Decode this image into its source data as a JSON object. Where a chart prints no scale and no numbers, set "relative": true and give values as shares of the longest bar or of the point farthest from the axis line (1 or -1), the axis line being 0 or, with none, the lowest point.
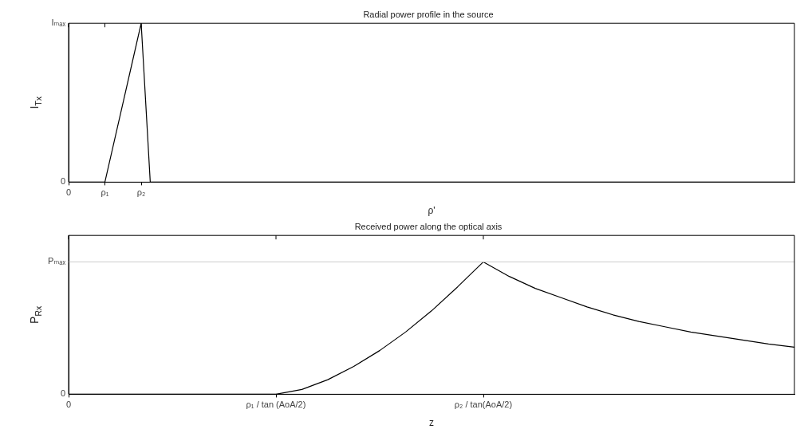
{
  "chart_data": [
    {
      "type": "line",
      "title": "Radial power profile in the source",
      "xlabel": "ρ'",
      "ylabel": "I$_{Tx}$",
      "marker": "none",
      "relative": true,
      "categories": [
        "0",
        null,
        null,
        null,
        "ρ₁",
        null,
        null,
        null,
        "ρ₂",
        null,
        null,
        null,
        null,
        null,
        null,
        null,
        null,
        null,
        null,
        null,
        null,
        null,
        null,
        null,
        null,
        null,
        null,
        null,
        null,
        null,
        null,
        null,
        null,
        null,
        null,
        null,
        null,
        null,
        null,
        null,
        null,
        null,
        null,
        null,
        null,
        null,
        null,
        null,
        null,
        null,
        null,
        null,
        null,
        null,
        null,
        null,
        null,
        null,
        null,
        null,
        null,
        null,
        null,
        null,
        null,
        null,
        null,
        null,
        null,
        null,
        null,
        null,
        null,
        null,
        null,
        null,
        null,
        null,
        null,
        null,
        null
      ],
      "annotations": [
        "0",
        "Iₘₐₓ"
      ],
      "series": [
        {
          "color": "#000000",
          "values": [
            0,
            0,
            0,
            0,
            0,
            0.25,
            0.5,
            0.75,
            1,
            0,
            0,
            0,
            0,
            0,
            0,
            0,
            0,
            0,
            0,
            0,
            0,
            0,
            0,
            0,
            0,
            0,
            0,
            0,
            0,
            0,
            0,
            0,
            0,
            0,
            0,
            0,
            0,
            0,
            0,
            0,
            0,
            0,
            0,
            0,
            0,
            0,
            0,
            0,
            0,
            0,
            0,
            0,
            0,
            0,
            0,
            0,
            0,
            0,
            0,
            0,
            0,
            0,
            0,
            0,
            0,
            0,
            0,
            0,
            0,
            0,
            0,
            0,
            0,
            0,
            0,
            0,
            0,
            0,
            0,
            0,
            0
          ]
        }
      ]
    },
    {
      "type": "line",
      "title": "Received power along the optical axis",
      "xlabel": "z",
      "ylabel": "P$_{Rx}$",
      "marker": "none",
      "relative": true,
      "categories": [
        "0",
        null,
        null,
        null,
        null,
        null,
        null,
        null,
        "ρ₁ / tan (AoA/2)",
        null,
        null,
        null,
        null,
        null,
        null,
        null,
        "ρ₂ / tan(AoA/2)",
        null,
        null,
        null,
        null,
        null,
        null,
        null,
        null,
        null,
        null,
        null,
        null
      ],
      "annotations": [
        "0",
        "Pₘₐₓ"
      ],
      "ref_lines": [
        {
          "axis": "y",
          "value": 1,
          "color": "#cccccc"
        }
      ],
      "series": [
        {
          "color": "#000000",
          "values": [
            0,
            0,
            0,
            0,
            0,
            0,
            0,
            0,
            0,
            0.036,
            0.11,
            0.21,
            0.33,
            0.47,
            0.63,
            0.81,
            1,
            0.89,
            0.8,
            0.73,
            0.66,
            0.6,
            0.55,
            0.51,
            0.47,
            0.44,
            0.41,
            0.38,
            0.355
          ]
        }
      ]
    }
  ]
}
